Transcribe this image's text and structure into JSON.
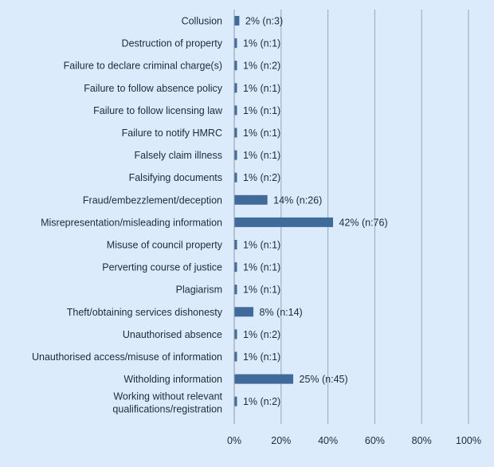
{
  "chart_data": {
    "type": "bar",
    "orientation": "horizontal",
    "categories": [
      "Collusion",
      "Destruction of property",
      "Failure to declare criminal charge(s)",
      "Failure to follow absence policy",
      "Failure to follow licensing law",
      "Failure to notify HMRC",
      "Falsely claim illness",
      "Falsifying documents",
      "Fraud/embezzlement/deception",
      "Misrepresentation/misleading information",
      "Misuse of council property",
      "Perverting course of justice",
      "Plagiarism",
      "Theft/obtaining services dishonesty",
      "Unauthorised absence",
      "Unauthorised access/misuse of information",
      "Witholding information",
      "Working without relevant qualifications/registration"
    ],
    "values": [
      2,
      1,
      1,
      1,
      1,
      1,
      1,
      1,
      14,
      42,
      1,
      1,
      1,
      8,
      1,
      1,
      25,
      1
    ],
    "data_labels": [
      "2% (n:3)",
      "1% (n:1)",
      "1% (n:2)",
      "1% (n:1)",
      "1% (n:1)",
      "1% (n:1)",
      "1% (n:1)",
      "1% (n:2)",
      "14% (n:26)",
      "42% (n:76)",
      "1% (n:1)",
      "1% (n:1)",
      "1% (n:1)",
      "8% (n:14)",
      "1% (n:2)",
      "1% (n:1)",
      "25% (n:45)",
      "1% (n:2)"
    ],
    "xlim": [
      0,
      100
    ],
    "x_ticks": [
      "0%",
      "20%",
      "40%",
      "60%",
      "80%",
      "100%"
    ],
    "grid": "vertical",
    "title": "",
    "xlabel": "",
    "ylabel": ""
  },
  "colors": {
    "background": "#dcebfb",
    "bar": "#3f6a9a",
    "gridline": "#9aa5b1",
    "text": "#1f2a37"
  }
}
